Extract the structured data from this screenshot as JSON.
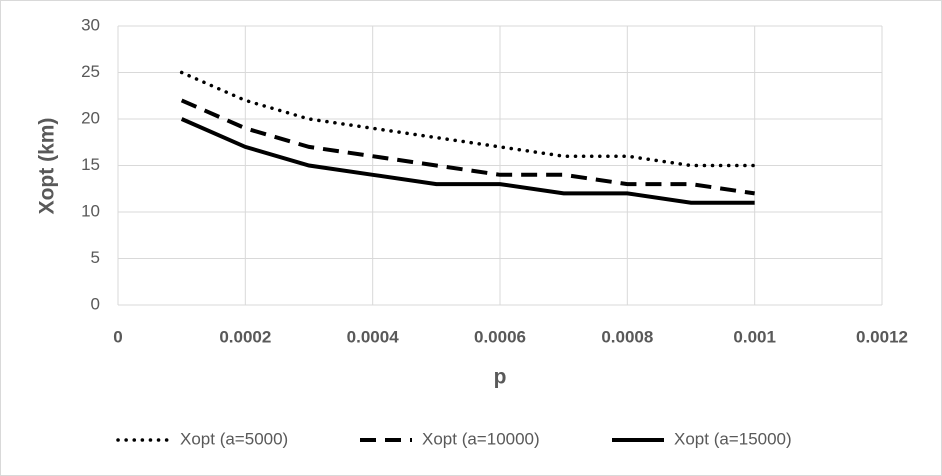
{
  "chart_data": {
    "type": "line",
    "x": [
      0.0001,
      0.0002,
      0.0003,
      0.0004,
      0.0005,
      0.0006,
      0.0007,
      0.0008,
      0.0009,
      0.001
    ],
    "series": [
      {
        "name": "Xopt (a=5000)",
        "color": "#000000",
        "dash": "dotted",
        "values": [
          25,
          22,
          20,
          19,
          18,
          17,
          16,
          16,
          15,
          15
        ]
      },
      {
        "name": "Xopt (a=10000)",
        "color": "#000000",
        "dash": "dashed",
        "values": [
          22,
          19,
          17,
          16,
          15,
          14,
          14,
          13,
          13,
          12
        ]
      },
      {
        "name": "Xopt (a=15000)",
        "color": "#000000",
        "dash": "solid",
        "values": [
          20,
          17,
          15,
          14,
          13,
          13,
          12,
          12,
          11,
          11
        ]
      }
    ],
    "xlabel": "p",
    "ylabel": "Xopt (km)",
    "xlim": [
      0,
      0.0012
    ],
    "xticks": [
      0,
      0.0002,
      0.0004,
      0.0006,
      0.0008,
      0.001,
      0.0012
    ],
    "ylim": [
      0,
      30
    ],
    "yticks": [
      0,
      5,
      10,
      15,
      20,
      25,
      30
    ],
    "grid": true,
    "legend": "bottom"
  }
}
